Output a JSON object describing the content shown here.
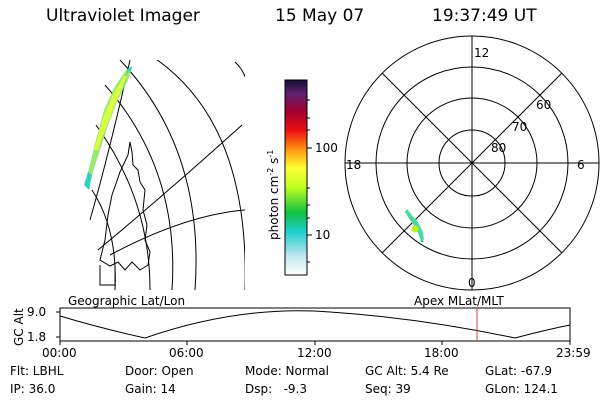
{
  "header": {
    "title": "Ultraviolet Imager",
    "date": "15 May 07",
    "time": "19:37:49 UT"
  },
  "colorbar": {
    "label": "photon cm",
    "label_sup1": "-2",
    "label_s": "s",
    "label_sup2": "-1",
    "ticks": [
      "100",
      "10"
    ]
  },
  "polar_plot": {
    "labels": [
      "12",
      "18",
      "6",
      "0"
    ],
    "lat_labels": [
      "60",
      "70",
      "80"
    ]
  },
  "panel_labels": {
    "left": "Geographic Lat/Lon",
    "right": "Apex MLat/MLT"
  },
  "orbit_plot": {
    "y_axis_label": "GC Alt",
    "y_ticks": [
      "9.0",
      "1.8"
    ],
    "x_ticks": [
      "00:00",
      "06:00",
      "12:00",
      "18:00",
      "23:59"
    ]
  },
  "info": {
    "row1": {
      "flt": "Flt: LBHL",
      "door": "Door: Open",
      "mode": "Mode: Normal",
      "gcalt": "GC Alt: 5.4 Re",
      "glat": "GLat: -67.9"
    },
    "row2": {
      "ip": "IP: 36.0",
      "gain": "Gain: 14",
      "dsp": "Dsp:   -9.3",
      "seq": "Seq: 39",
      "glon": "GLon: 124.1"
    }
  },
  "colors": {
    "orbit_marker": "#d04040",
    "foreground": "#000000"
  }
}
